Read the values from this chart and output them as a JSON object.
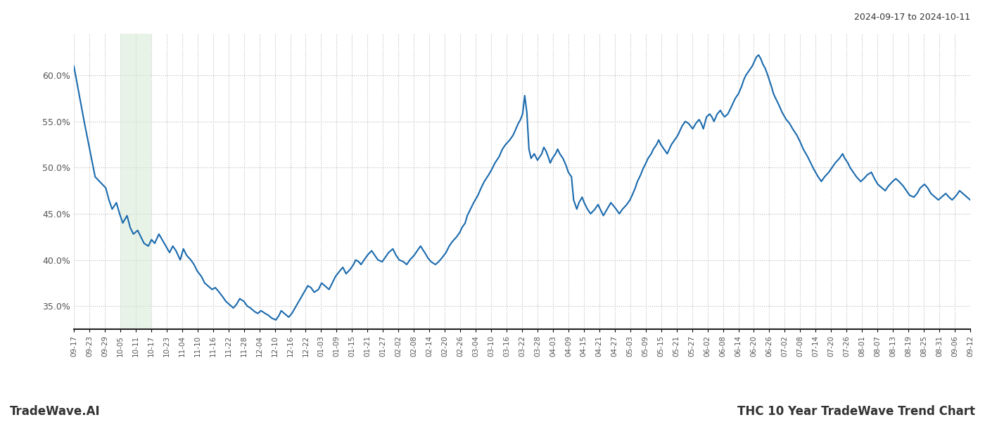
{
  "title_right": "2024-09-17 to 2024-10-11",
  "footer_left": "TradeWave.AI",
  "footer_right": "THC 10 Year TradeWave Trend Chart",
  "line_color": "#1a6aad",
  "line_width": 1.5,
  "shade_color": "#d6ead6",
  "shade_alpha": 0.55,
  "ylim": [
    0.325,
    0.645
  ],
  "yticks": [
    0.35,
    0.4,
    0.45,
    0.5,
    0.55,
    0.6
  ],
  "background_color": "#ffffff",
  "grid_color": "#bbbbbb",
  "x_labels": [
    "09-17",
    "09-23",
    "09-29",
    "10-05",
    "10-11",
    "10-17",
    "10-23",
    "11-04",
    "11-10",
    "11-16",
    "11-22",
    "11-28",
    "12-04",
    "12-10",
    "12-16",
    "12-22",
    "01-03",
    "01-09",
    "01-15",
    "01-21",
    "01-27",
    "02-02",
    "02-08",
    "02-14",
    "02-20",
    "02-26",
    "03-04",
    "03-10",
    "03-16",
    "03-22",
    "03-28",
    "04-03",
    "04-09",
    "04-15",
    "04-21",
    "04-27",
    "05-03",
    "05-09",
    "05-15",
    "05-21",
    "05-27",
    "06-02",
    "06-08",
    "06-14",
    "06-20",
    "06-26",
    "07-02",
    "07-08",
    "07-14",
    "07-20",
    "07-26",
    "08-01",
    "08-07",
    "08-13",
    "08-19",
    "08-25",
    "08-31",
    "09-06",
    "09-12"
  ],
  "shade_label_start": "10-05",
  "shade_label_end": "10-17",
  "key_points": [
    [
      0,
      0.61
    ],
    [
      1,
      0.548
    ],
    [
      2,
      0.49
    ],
    [
      3,
      0.478
    ],
    [
      3.3,
      0.465
    ],
    [
      3.6,
      0.455
    ],
    [
      4,
      0.462
    ],
    [
      4.3,
      0.45
    ],
    [
      4.6,
      0.44
    ],
    [
      5,
      0.448
    ],
    [
      5.3,
      0.435
    ],
    [
      5.6,
      0.428
    ],
    [
      6,
      0.432
    ],
    [
      6.3,
      0.425
    ],
    [
      6.6,
      0.418
    ],
    [
      7,
      0.415
    ],
    [
      7.3,
      0.422
    ],
    [
      7.6,
      0.418
    ],
    [
      8,
      0.428
    ],
    [
      8.3,
      0.422
    ],
    [
      8.5,
      0.418
    ],
    [
      8.8,
      0.412
    ],
    [
      9,
      0.408
    ],
    [
      9.3,
      0.415
    ],
    [
      9.6,
      0.41
    ],
    [
      10,
      0.4
    ],
    [
      10.3,
      0.412
    ],
    [
      10.6,
      0.405
    ],
    [
      11,
      0.4
    ],
    [
      11.3,
      0.395
    ],
    [
      11.6,
      0.388
    ],
    [
      12,
      0.382
    ],
    [
      12.3,
      0.375
    ],
    [
      12.6,
      0.372
    ],
    [
      13,
      0.368
    ],
    [
      13.3,
      0.37
    ],
    [
      13.6,
      0.366
    ],
    [
      14,
      0.36
    ],
    [
      14.3,
      0.355
    ],
    [
      14.6,
      0.352
    ],
    [
      15,
      0.348
    ],
    [
      15.3,
      0.352
    ],
    [
      15.6,
      0.358
    ],
    [
      16,
      0.355
    ],
    [
      16.3,
      0.35
    ],
    [
      16.6,
      0.348
    ],
    [
      17,
      0.344
    ],
    [
      17.3,
      0.342
    ],
    [
      17.6,
      0.345
    ],
    [
      18,
      0.342
    ],
    [
      18.3,
      0.34
    ],
    [
      18.6,
      0.337
    ],
    [
      19,
      0.335
    ],
    [
      19.3,
      0.34
    ],
    [
      19.5,
      0.345
    ],
    [
      19.8,
      0.342
    ],
    [
      20,
      0.34
    ],
    [
      20.2,
      0.338
    ],
    [
      20.5,
      0.342
    ],
    [
      20.8,
      0.348
    ],
    [
      21,
      0.352
    ],
    [
      21.3,
      0.358
    ],
    [
      21.5,
      0.362
    ],
    [
      21.8,
      0.368
    ],
    [
      22,
      0.372
    ],
    [
      22.3,
      0.37
    ],
    [
      22.6,
      0.365
    ],
    [
      23,
      0.368
    ],
    [
      23.3,
      0.375
    ],
    [
      23.6,
      0.372
    ],
    [
      24,
      0.368
    ],
    [
      24.3,
      0.375
    ],
    [
      24.6,
      0.382
    ],
    [
      25,
      0.388
    ],
    [
      25.3,
      0.392
    ],
    [
      25.6,
      0.385
    ],
    [
      26,
      0.39
    ],
    [
      26.3,
      0.395
    ],
    [
      26.5,
      0.4
    ],
    [
      26.8,
      0.398
    ],
    [
      27,
      0.395
    ],
    [
      27.3,
      0.4
    ],
    [
      27.6,
      0.405
    ],
    [
      28,
      0.41
    ],
    [
      28.3,
      0.405
    ],
    [
      28.6,
      0.4
    ],
    [
      29,
      0.398
    ],
    [
      29.3,
      0.403
    ],
    [
      29.6,
      0.408
    ],
    [
      30,
      0.412
    ],
    [
      30.3,
      0.405
    ],
    [
      30.6,
      0.4
    ],
    [
      31,
      0.398
    ],
    [
      31.3,
      0.395
    ],
    [
      31.6,
      0.4
    ],
    [
      32,
      0.405
    ],
    [
      32.3,
      0.41
    ],
    [
      32.6,
      0.415
    ],
    [
      33,
      0.408
    ],
    [
      33.3,
      0.402
    ],
    [
      33.6,
      0.398
    ],
    [
      34,
      0.395
    ],
    [
      34.3,
      0.398
    ],
    [
      34.6,
      0.402
    ],
    [
      35,
      0.408
    ],
    [
      35.3,
      0.415
    ],
    [
      35.6,
      0.42
    ],
    [
      36,
      0.425
    ],
    [
      36.3,
      0.43
    ],
    [
      36.5,
      0.435
    ],
    [
      36.8,
      0.44
    ],
    [
      37,
      0.448
    ],
    [
      37.3,
      0.455
    ],
    [
      37.6,
      0.462
    ],
    [
      38,
      0.47
    ],
    [
      38.3,
      0.478
    ],
    [
      38.6,
      0.485
    ],
    [
      39,
      0.492
    ],
    [
      39.3,
      0.498
    ],
    [
      39.6,
      0.505
    ],
    [
      40,
      0.512
    ],
    [
      40.3,
      0.52
    ],
    [
      40.6,
      0.525
    ],
    [
      41,
      0.53
    ],
    [
      41.3,
      0.535
    ],
    [
      41.5,
      0.54
    ],
    [
      41.8,
      0.548
    ],
    [
      42,
      0.552
    ],
    [
      42.2,
      0.558
    ],
    [
      42.4,
      0.578
    ],
    [
      42.6,
      0.56
    ],
    [
      42.8,
      0.52
    ],
    [
      43,
      0.51
    ],
    [
      43.3,
      0.515
    ],
    [
      43.6,
      0.508
    ],
    [
      44,
      0.515
    ],
    [
      44.2,
      0.522
    ],
    [
      44.4,
      0.518
    ],
    [
      44.6,
      0.512
    ],
    [
      44.8,
      0.505
    ],
    [
      45,
      0.51
    ],
    [
      45.3,
      0.515
    ],
    [
      45.5,
      0.52
    ],
    [
      45.7,
      0.515
    ],
    [
      46,
      0.51
    ],
    [
      46.3,
      0.502
    ],
    [
      46.5,
      0.495
    ],
    [
      46.8,
      0.49
    ],
    [
      47,
      0.465
    ],
    [
      47.3,
      0.455
    ],
    [
      47.5,
      0.462
    ],
    [
      47.8,
      0.468
    ],
    [
      48,
      0.462
    ],
    [
      48.3,
      0.455
    ],
    [
      48.6,
      0.45
    ],
    [
      49,
      0.455
    ],
    [
      49.3,
      0.46
    ],
    [
      49.5,
      0.455
    ],
    [
      49.8,
      0.448
    ],
    [
      50,
      0.452
    ],
    [
      50.3,
      0.458
    ],
    [
      50.5,
      0.462
    ],
    [
      50.8,
      0.458
    ],
    [
      51,
      0.455
    ],
    [
      51.3,
      0.45
    ],
    [
      51.6,
      0.455
    ],
    [
      52,
      0.46
    ],
    [
      52.3,
      0.465
    ],
    [
      52.5,
      0.47
    ],
    [
      52.8,
      0.478
    ],
    [
      53,
      0.485
    ],
    [
      53.3,
      0.492
    ],
    [
      53.5,
      0.498
    ],
    [
      53.8,
      0.505
    ],
    [
      54,
      0.51
    ],
    [
      54.3,
      0.515
    ],
    [
      54.5,
      0.52
    ],
    [
      54.8,
      0.525
    ],
    [
      55,
      0.53
    ],
    [
      55.2,
      0.525
    ],
    [
      55.5,
      0.52
    ],
    [
      55.8,
      0.515
    ],
    [
      56,
      0.52
    ],
    [
      56.2,
      0.525
    ],
    [
      56.5,
      0.53
    ],
    [
      56.8,
      0.535
    ],
    [
      57,
      0.54
    ],
    [
      57.2,
      0.545
    ],
    [
      57.5,
      0.55
    ],
    [
      57.8,
      0.548
    ],
    [
      58,
      0.545
    ],
    [
      58.2,
      0.542
    ],
    [
      58.5,
      0.548
    ],
    [
      58.8,
      0.552
    ],
    [
      59,
      0.548
    ],
    [
      59.2,
      0.542
    ],
    [
      59.5,
      0.555
    ],
    [
      59.8,
      0.558
    ],
    [
      60,
      0.555
    ],
    [
      60.2,
      0.55
    ],
    [
      60.5,
      0.558
    ],
    [
      60.8,
      0.562
    ],
    [
      61,
      0.558
    ],
    [
      61.2,
      0.555
    ],
    [
      61.5,
      0.558
    ],
    [
      61.8,
      0.565
    ],
    [
      62,
      0.57
    ],
    [
      62.2,
      0.575
    ],
    [
      62.5,
      0.58
    ],
    [
      62.8,
      0.588
    ],
    [
      63,
      0.595
    ],
    [
      63.2,
      0.6
    ],
    [
      63.5,
      0.605
    ],
    [
      63.8,
      0.61
    ],
    [
      64,
      0.615
    ],
    [
      64.2,
      0.62
    ],
    [
      64.4,
      0.622
    ],
    [
      64.6,
      0.618
    ],
    [
      64.8,
      0.612
    ],
    [
      65,
      0.608
    ],
    [
      65.2,
      0.602
    ],
    [
      65.4,
      0.595
    ],
    [
      65.6,
      0.588
    ],
    [
      65.8,
      0.58
    ],
    [
      66,
      0.575
    ],
    [
      66.3,
      0.568
    ],
    [
      66.6,
      0.56
    ],
    [
      67,
      0.552
    ],
    [
      67.3,
      0.548
    ],
    [
      67.6,
      0.542
    ],
    [
      68,
      0.535
    ],
    [
      68.3,
      0.528
    ],
    [
      68.6,
      0.52
    ],
    [
      69,
      0.512
    ],
    [
      69.3,
      0.505
    ],
    [
      69.6,
      0.498
    ],
    [
      70,
      0.49
    ],
    [
      70.3,
      0.485
    ],
    [
      70.6,
      0.49
    ],
    [
      71,
      0.495
    ],
    [
      71.3,
      0.5
    ],
    [
      71.6,
      0.505
    ],
    [
      72,
      0.51
    ],
    [
      72.3,
      0.515
    ],
    [
      72.5,
      0.51
    ],
    [
      72.8,
      0.505
    ],
    [
      73,
      0.5
    ],
    [
      73.3,
      0.495
    ],
    [
      73.6,
      0.49
    ],
    [
      74,
      0.485
    ],
    [
      74.3,
      0.488
    ],
    [
      74.6,
      0.492
    ],
    [
      75,
      0.495
    ],
    [
      75.3,
      0.488
    ],
    [
      75.6,
      0.482
    ],
    [
      76,
      0.478
    ],
    [
      76.3,
      0.475
    ],
    [
      76.6,
      0.48
    ],
    [
      77,
      0.485
    ],
    [
      77.3,
      0.488
    ],
    [
      77.6,
      0.485
    ],
    [
      78,
      0.48
    ],
    [
      78.3,
      0.475
    ],
    [
      78.6,
      0.47
    ],
    [
      79,
      0.468
    ],
    [
      79.3,
      0.472
    ],
    [
      79.6,
      0.478
    ],
    [
      80,
      0.482
    ],
    [
      80.3,
      0.478
    ],
    [
      80.6,
      0.472
    ],
    [
      81,
      0.468
    ],
    [
      81.3,
      0.465
    ],
    [
      81.6,
      0.468
    ],
    [
      82,
      0.472
    ],
    [
      82.3,
      0.468
    ],
    [
      82.6,
      0.465
    ],
    [
      83,
      0.47
    ],
    [
      83.3,
      0.475
    ],
    [
      83.6,
      0.472
    ],
    [
      84,
      0.468
    ],
    [
      84.3,
      0.465
    ]
  ]
}
